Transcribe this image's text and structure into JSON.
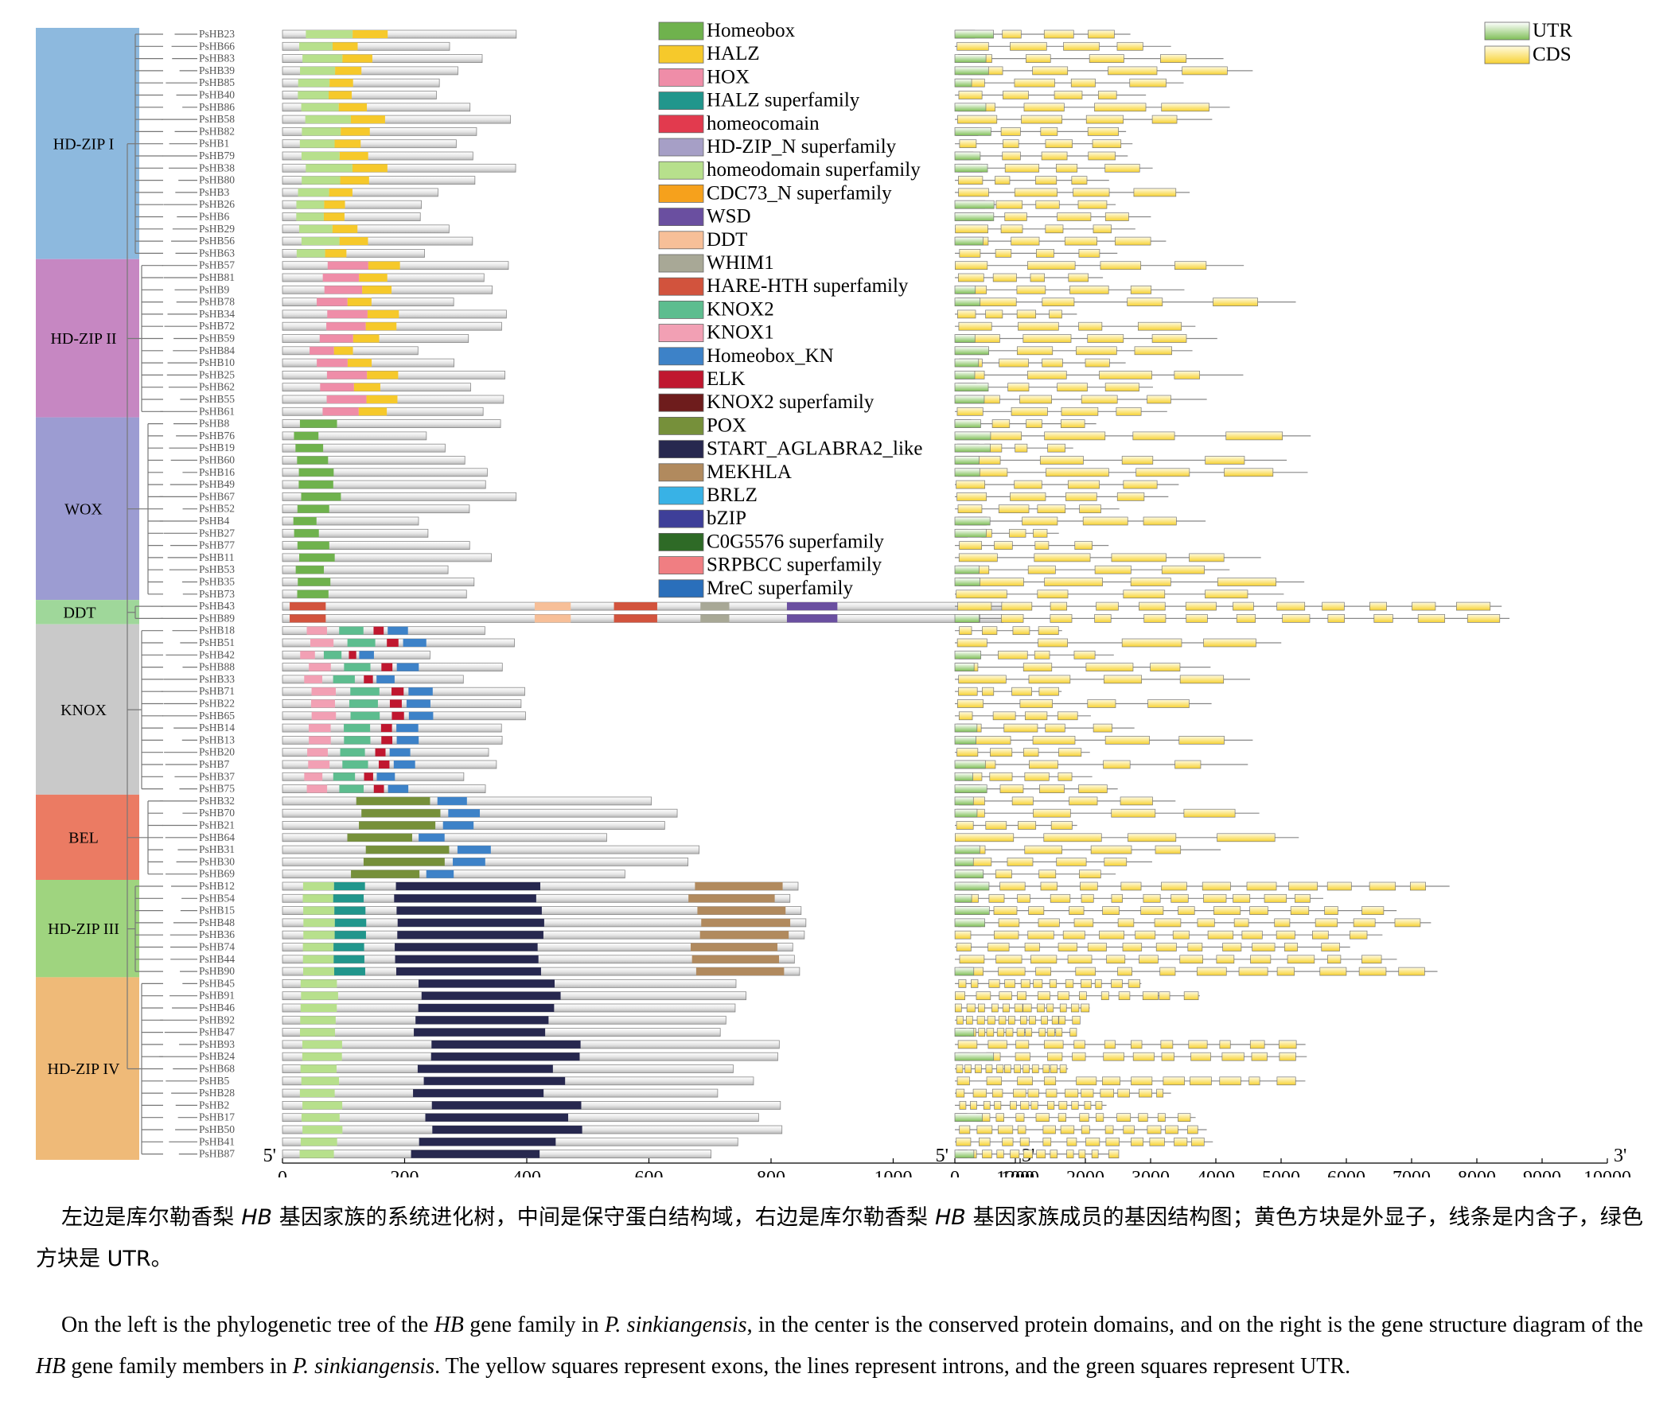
{
  "groups": [
    {
      "name": "HD-ZIP I",
      "color": "#8db9de",
      "genes": [
        "PsHB23",
        "PsHB66",
        "PsHB83",
        "PsHB39",
        "PsHB85",
        "PsHB40",
        "PsHB86",
        "PsHB58",
        "PsHB82",
        "PsHB1",
        "PsHB79",
        "PsHB38",
        "PsHB80",
        "PsHB3",
        "PsHB26",
        "PsHB6",
        "PsHB29",
        "PsHB56",
        "PsHB63"
      ]
    },
    {
      "name": "HD-ZIP II",
      "color": "#c687c2",
      "genes": [
        "PsHB57",
        "PsHB81",
        "PsHB9",
        "PsHB78",
        "PsHB34",
        "PsHB72",
        "PsHB59",
        "PsHB84",
        "PsHB10",
        "PsHB25",
        "PsHB62",
        "PsHB55",
        "PsHB61"
      ]
    },
    {
      "name": "WOX",
      "color": "#9c9cd2",
      "genes": [
        "PsHB8",
        "PsHB76",
        "PsHB19",
        "PsHB60",
        "PsHB16",
        "PsHB49",
        "PsHB67",
        "PsHB52",
        "PsHB4",
        "PsHB27",
        "PsHB77",
        "PsHB11",
        "PsHB53",
        "PsHB35",
        "PsHB73"
      ]
    },
    {
      "name": "DDT",
      "color": "#9fd79a",
      "genes": [
        "PsHB43",
        "PsHB89"
      ]
    },
    {
      "name": "KNOX",
      "color": "#c9c9c9",
      "genes": [
        "PsHB18",
        "PsHB51",
        "PsHB42",
        "PsHB88",
        "PsHB33",
        "PsHB71",
        "PsHB22",
        "PsHB65",
        "PsHB14",
        "PsHB13",
        "PsHB20",
        "PsHB7",
        "PsHB37",
        "PsHB75"
      ]
    },
    {
      "name": "BEL",
      "color": "#eb7b63",
      "genes": [
        "PsHB32",
        "PsHB70",
        "PsHB21",
        "PsHB64",
        "PsHB31",
        "PsHB30",
        "PsHB69"
      ]
    },
    {
      "name": "HD-ZIP III",
      "color": "#9fd47f",
      "genes": [
        "PsHB12",
        "PsHB54",
        "PsHB15",
        "PsHB48",
        "PsHB36",
        "PsHB74",
        "PsHB44",
        "PsHB90"
      ]
    },
    {
      "name": "HD-ZIP IV",
      "color": "#efba78",
      "genes": [
        "PsHB45",
        "PsHB91",
        "PsHB46",
        "PsHB92",
        "PsHB47",
        "PsHB93",
        "PsHB24",
        "PsHB68",
        "PsHB5",
        "PsHB28",
        "PsHB2",
        "PsHB17",
        "PsHB50",
        "PsHB41",
        "PsHB87"
      ]
    }
  ],
  "domain_legend": [
    {
      "name": "Homeobox",
      "color": "#6fb24d"
    },
    {
      "name": "HALZ",
      "color": "#f6c92b"
    },
    {
      "name": "HOX",
      "color": "#ef8da8"
    },
    {
      "name": "HALZ superfamily",
      "color": "#21968c"
    },
    {
      "name": "homeocomain",
      "color": "#e23a4e"
    },
    {
      "name": "HD-ZIP_N superfamily",
      "color": "#a69fc6"
    },
    {
      "name": "homeodomain superfamily",
      "color": "#b7e08c"
    },
    {
      "name": "CDC73_N superfamily",
      "color": "#f6a11c"
    },
    {
      "name": "WSD",
      "color": "#6a4fa0"
    },
    {
      "name": "DDT",
      "color": "#f7bf98"
    },
    {
      "name": "WHIM1",
      "color": "#a8a896"
    },
    {
      "name": "HARE-HTH superfamily",
      "color": "#d2533d"
    },
    {
      "name": "KNOX2",
      "color": "#5dbd8f"
    },
    {
      "name": "KNOX1",
      "color": "#f2a0b4"
    },
    {
      "name": "Homeobox_KN",
      "color": "#3d82c8"
    },
    {
      "name": "ELK",
      "color": "#c0172f"
    },
    {
      "name": "KNOX2 superfamily",
      "color": "#6e1c1c"
    },
    {
      "name": "POX",
      "color": "#76903a"
    },
    {
      "name": "START_AGLABRA2_like",
      "color": "#27284f"
    },
    {
      "name": "MEKHLA",
      "color": "#b18a5e"
    },
    {
      "name": "BRLZ",
      "color": "#38b2e6"
    },
    {
      "name": "bZIP",
      "color": "#3e3f99"
    },
    {
      "name": "C0G5576 superfamily",
      "color": "#2e6a26"
    },
    {
      "name": "SRPBCC superfamily",
      "color": "#f07e82"
    },
    {
      "name": "MreC superfamily",
      "color": "#2a6fbb"
    }
  ],
  "structure_legend": [
    {
      "name": "UTR",
      "color": "#7fbf57"
    },
    {
      "name": "CDS",
      "color": "#f7d234"
    }
  ],
  "protein_axis": {
    "ticks": [
      "0",
      "200",
      "400",
      "600",
      "800",
      "1000",
      "1200"
    ],
    "left_label": "5'",
    "right_label": "3'",
    "max": 1200
  },
  "gene_axis": {
    "ticks": [
      "0",
      "1000",
      "2000",
      "3000",
      "4000",
      "5000",
      "6000",
      "7000",
      "8000",
      "9000",
      "10000"
    ],
    "left_label": "5'",
    "right_label": "3'",
    "max": 10000
  },
  "caption": {
    "zh_1": "左边是库尔勒香梨 ",
    "zh_gene": "HB",
    "zh_2": " 基因家族的系统进化树，中间是保守蛋白结构域，右边是库尔勒香梨 ",
    "zh_3": " 基因家族成员的基因结构图；黄色方块是外显子，线条是内含子，绿色方块是 UTR。",
    "en_1": "On the left is the phylogenetic tree of the ",
    "en_gene": "HB",
    "en_2": " gene family in ",
    "en_species": "P. sinkiangensis",
    "en_3": ", in the center is the conserved protein domains, and on the right is the gene structure diagram of the ",
    "en_4": " gene family members in ",
    "en_5": ". The yellow squares represent exons, the lines represent introns, and the green squares represent UTR."
  }
}
